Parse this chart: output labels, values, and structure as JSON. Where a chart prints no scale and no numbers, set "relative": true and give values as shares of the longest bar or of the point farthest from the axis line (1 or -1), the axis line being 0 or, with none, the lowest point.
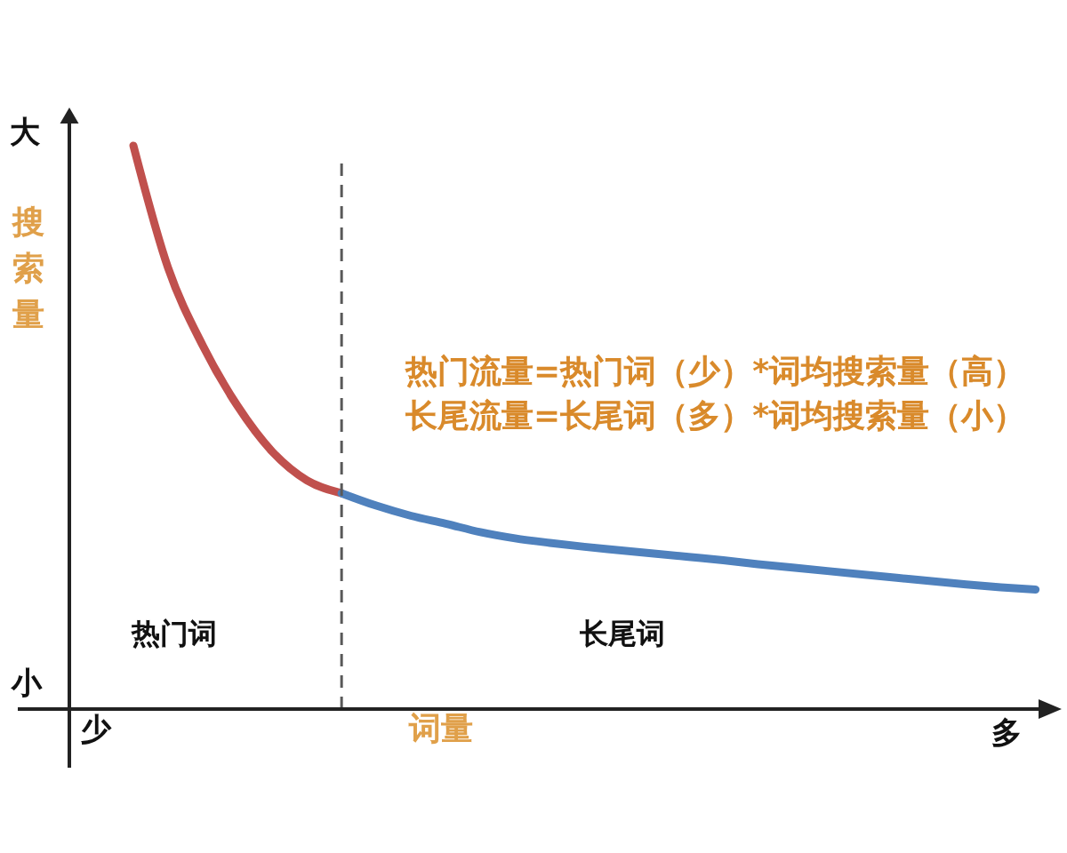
{
  "chart_data": {
    "type": "line",
    "relative": true,
    "xlabel": "词量",
    "ylabel": "搜索量",
    "categories": [
      null,
      null,
      null,
      null,
      null,
      null,
      null,
      null,
      null,
      null,
      null,
      null,
      null,
      null,
      null,
      null,
      null,
      null,
      null,
      null,
      null,
      null,
      null,
      null,
      null,
      null,
      null
    ],
    "series": [
      {
        "color": "#c0504d",
        "values": [
          1.0,
          0.783,
          0.645,
          0.538,
          0.457,
          0.406,
          0.383,
          null,
          null,
          null,
          null,
          null,
          null,
          null,
          null,
          null,
          null,
          null,
          null,
          null,
          null,
          null,
          null,
          null,
          null,
          null,
          null
        ]
      },
      {
        "color": "#4f81bd",
        "values": [
          null,
          null,
          null,
          null,
          null,
          null,
          0.383,
          0.361,
          0.343,
          0.329,
          0.314,
          0.303,
          0.295,
          0.288,
          0.282,
          0.276,
          0.27,
          0.264,
          0.257,
          0.251,
          0.245,
          0.239,
          0.233,
          0.227,
          0.221,
          0.216,
          0.212
        ]
      }
    ],
    "annotations": [
      "大",
      "小",
      "少",
      "多",
      "热门词",
      "长尾词",
      "热门流量=热门词（少）*词均搜索量（高）",
      "长尾流量=长尾词（多）*词均搜索量（小）"
    ]
  }
}
